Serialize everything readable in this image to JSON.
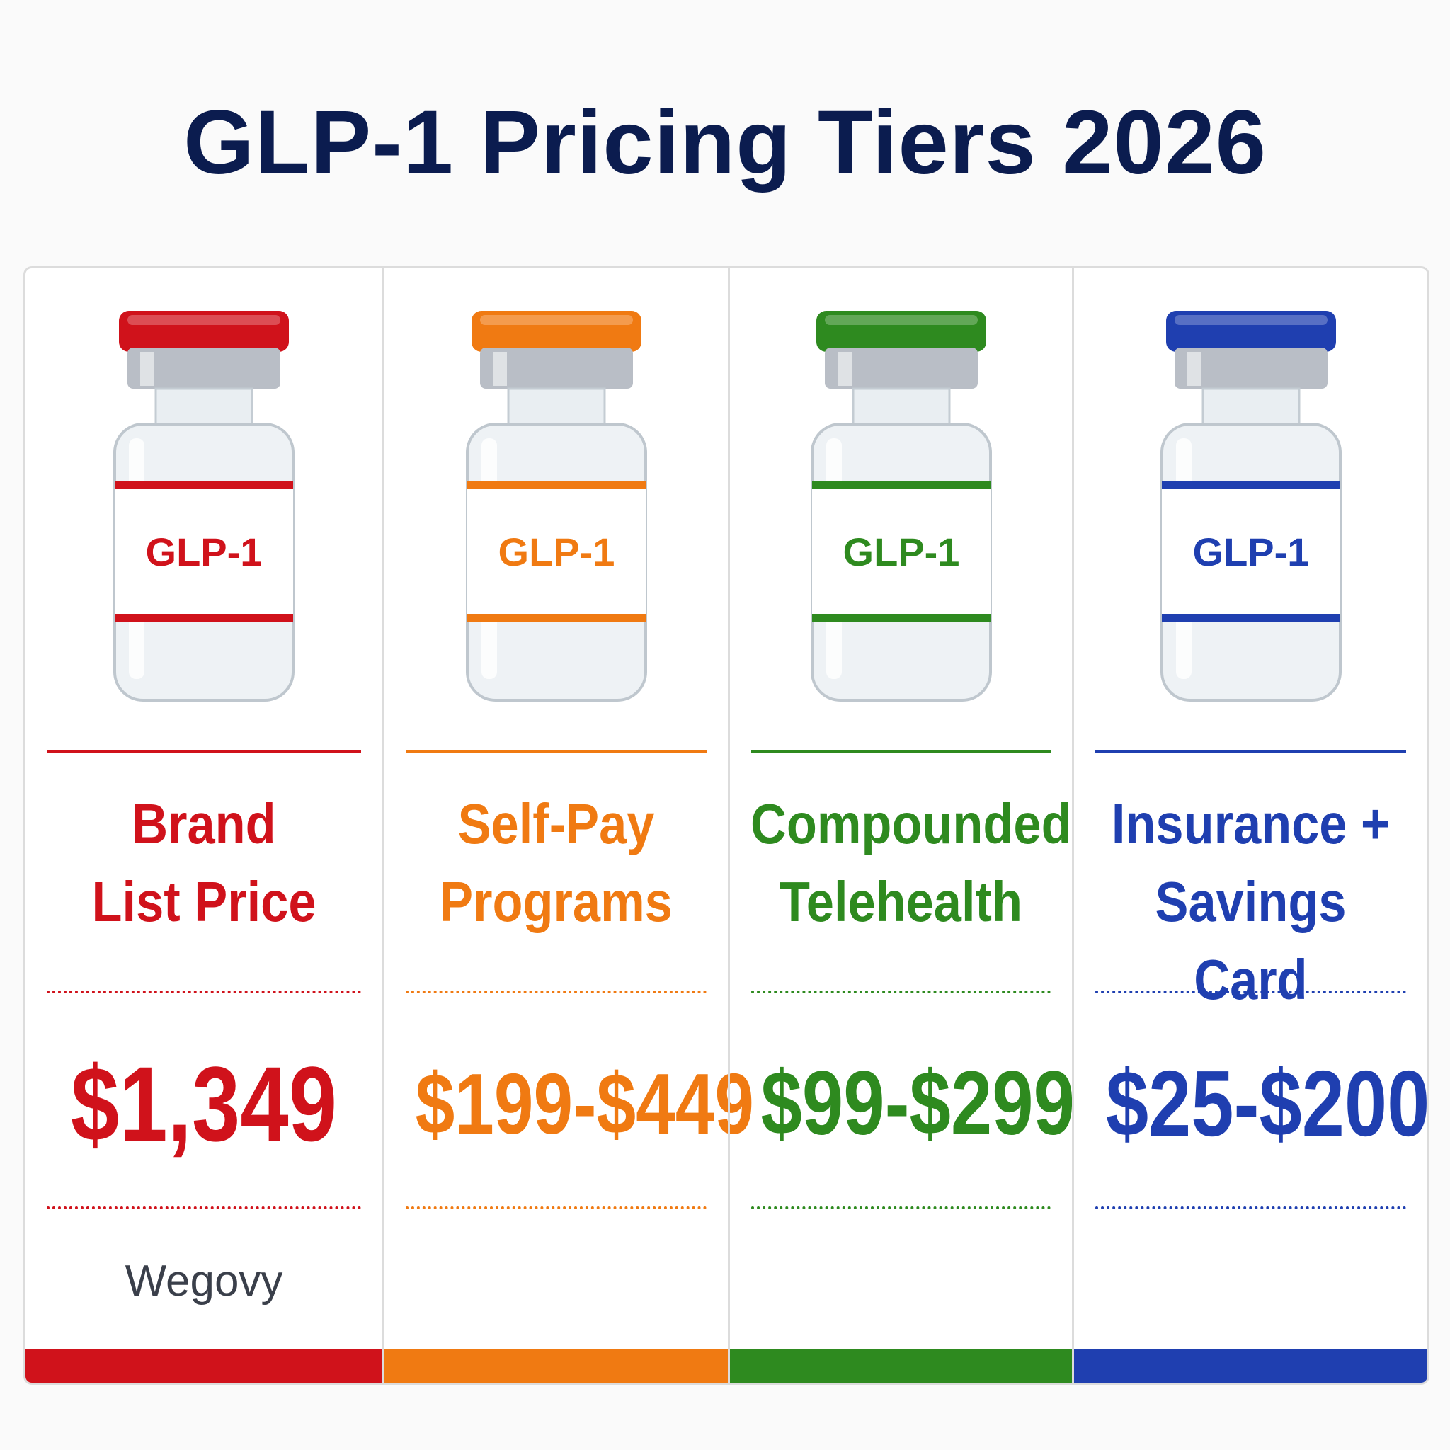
{
  "title": "GLP-1 Pricing Tiers 2026",
  "tiers": [
    {
      "vial_label": "GLP-1",
      "name": "Brand\nList Price",
      "price": "$1,349",
      "note": "Wegovy",
      "color": "#d0121b",
      "cap_icon": "red-vial-icon"
    },
    {
      "vial_label": "GLP-1",
      "name": "Self-Pay\nPrograms",
      "price": "$199-$449",
      "note": "",
      "color": "#f07a12",
      "cap_icon": "orange-vial-icon"
    },
    {
      "vial_label": "GLP-1",
      "name": "Compounded\nTelehealth",
      "price": "$99-$299",
      "note": "",
      "color": "#2e8a1f",
      "cap_icon": "green-vial-icon"
    },
    {
      "vial_label": "GLP-1",
      "name": "Insurance +\nSavings Card",
      "price": "$25-$200",
      "note": "",
      "color": "#1f3fb0",
      "cap_icon": "blue-vial-icon"
    }
  ]
}
